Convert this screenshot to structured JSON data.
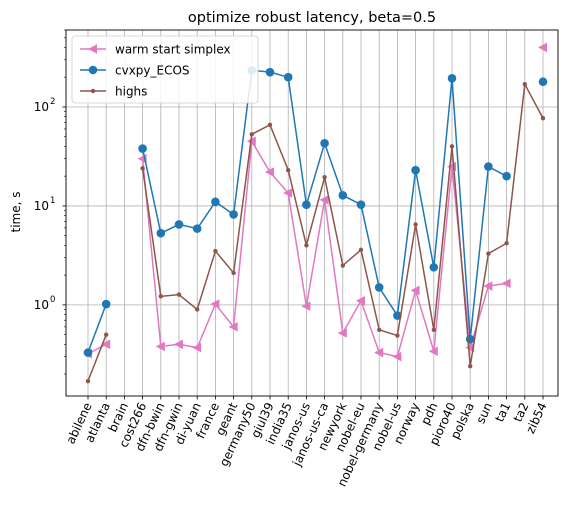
{
  "chart_data": {
    "type": "line",
    "title": "optimize robust latency, beta=0.5",
    "xlabel": "",
    "ylabel": "time, s",
    "yscale": "log",
    "ylim": [
      0.12,
      600
    ],
    "yticks": [
      {
        "value": 1,
        "label": "10",
        "exp": "0"
      },
      {
        "value": 10,
        "label": "10",
        "exp": "1"
      },
      {
        "value": 100,
        "label": "10",
        "exp": "2"
      }
    ],
    "grid": true,
    "legend": "top-left",
    "categories": [
      "abilene",
      "atlanta",
      "brain",
      "cost266",
      "dfn-bwin",
      "dfn-gwin",
      "di-yuan",
      "france",
      "geant",
      "germany50",
      "giul39",
      "india35",
      "janos-us",
      "janos-us-ca",
      "newyork",
      "nobel-eu",
      "nobel-germany",
      "nobel-us",
      "norway",
      "pdh",
      "pioro40",
      "polska",
      "sun",
      "ta1",
      "ta2",
      "zib54"
    ],
    "series": [
      {
        "name": "warm start simplex",
        "color": "#e377c2",
        "marker": "triangle-left",
        "values": [
          0.32,
          0.4,
          null,
          30,
          0.38,
          0.4,
          0.37,
          1.02,
          0.6,
          45,
          22,
          13.5,
          0.97,
          11.5,
          0.52,
          1.1,
          0.33,
          0.3,
          1.4,
          0.34,
          25,
          0.37,
          1.55,
          1.65,
          null,
          400
        ]
      },
      {
        "name": "cvxpy_ECOS",
        "color": "#1f77b4",
        "marker": "circle",
        "values": [
          0.33,
          1.02,
          null,
          38,
          5.3,
          6.5,
          5.9,
          11,
          8.2,
          235,
          225,
          200,
          10.3,
          43,
          12.8,
          10.3,
          1.5,
          0.78,
          23,
          2.4,
          195,
          0.45,
          25,
          20,
          null,
          180
        ]
      },
      {
        "name": "highs",
        "color": "#8c564b",
        "marker": "point",
        "values": [
          0.17,
          0.5,
          null,
          24,
          1.22,
          1.27,
          0.9,
          3.5,
          2.1,
          53,
          66,
          23,
          4,
          19.5,
          2.5,
          3.6,
          0.56,
          0.49,
          6.5,
          0.56,
          40,
          0.24,
          3.3,
          4.2,
          170,
          77
        ]
      }
    ]
  }
}
